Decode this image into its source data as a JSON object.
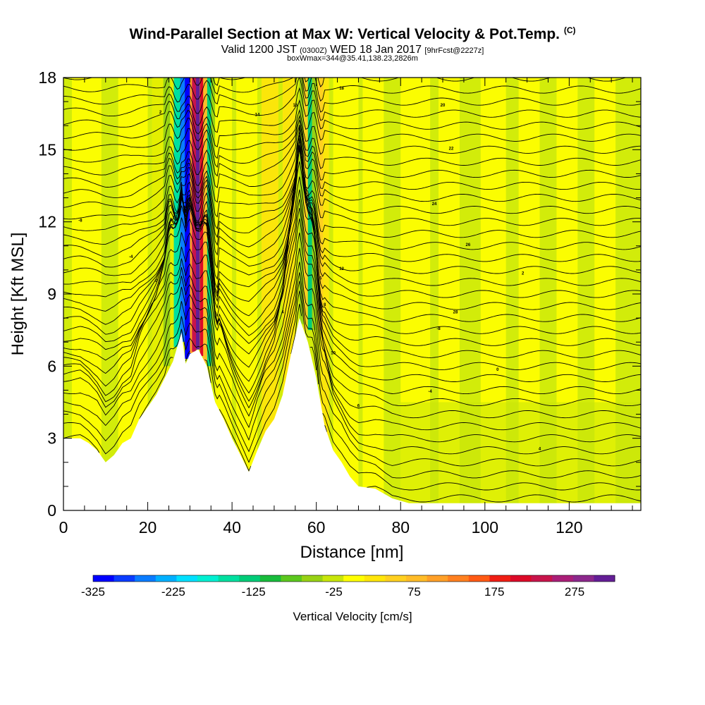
{
  "header": {
    "title": "Wind-Parallel Section at Max W: Vertical Velocity & Pot.Temp.",
    "title_units": "(C)",
    "valid_a": "Valid 1200 JST",
    "valid_b": "(0300Z)",
    "valid_c": "WED 18 Jan 2017",
    "valid_d": "[9hrFcst@2227z]",
    "box_info": "boxWmax=344@35.41,138.23,2826m"
  },
  "chart_data": {
    "type": "heatmap",
    "xlabel": "Distance [nm]",
    "ylabel": "Height [Kft MSL]",
    "xlim": [
      0,
      137
    ],
    "ylim": [
      0,
      18
    ],
    "x_ticks": [
      "0",
      "20",
      "40",
      "60",
      "80",
      "100",
      "120"
    ],
    "x_tick_values": [
      0,
      20,
      40,
      60,
      80,
      100,
      120
    ],
    "y_ticks": [
      "0",
      "3",
      "6",
      "9",
      "12",
      "15",
      "18"
    ],
    "y_tick_values": [
      0,
      3,
      6,
      9,
      12,
      15,
      18
    ],
    "terrain_kft": [
      [
        0,
        3.0
      ],
      [
        4,
        3.0
      ],
      [
        6,
        2.8
      ],
      [
        8,
        2.5
      ],
      [
        10,
        2.0
      ],
      [
        12,
        2.3
      ],
      [
        14,
        2.8
      ],
      [
        16,
        3.0
      ],
      [
        18,
        3.8
      ],
      [
        20,
        4.3
      ],
      [
        22,
        4.8
      ],
      [
        24,
        5.5
      ],
      [
        26,
        6.2
      ],
      [
        28,
        7.4
      ],
      [
        29,
        6.1
      ],
      [
        30,
        6.5
      ],
      [
        32,
        6.7
      ],
      [
        34,
        6.0
      ],
      [
        36,
        4.5
      ],
      [
        38,
        3.8
      ],
      [
        40,
        3.0
      ],
      [
        42,
        2.3
      ],
      [
        44,
        1.6
      ],
      [
        46,
        2.5
      ],
      [
        48,
        3.3
      ],
      [
        50,
        3.8
      ],
      [
        52,
        4.8
      ],
      [
        54,
        6.5
      ],
      [
        56,
        8.0
      ],
      [
        58,
        7.0
      ],
      [
        60,
        5.5
      ],
      [
        62,
        3.5
      ],
      [
        64,
        2.5
      ],
      [
        66,
        2.0
      ],
      [
        68,
        1.4
      ],
      [
        70,
        1.0
      ],
      [
        74,
        0.9
      ],
      [
        78,
        0.5
      ],
      [
        82,
        0.3
      ],
      [
        137,
        0.3
      ]
    ],
    "colorbar": {
      "min": -325,
      "max": 325,
      "unit_label": "Vertical Velocity [cm/s]",
      "tick_labels": [
        "-325",
        "-225",
        "-125",
        "-25",
        "75",
        "175",
        "275"
      ],
      "tick_values": [
        -325,
        -225,
        -125,
        -25,
        75,
        175,
        275
      ],
      "colors": [
        "#0000ff",
        "#0a3cff",
        "#0a7cff",
        "#00b0ff",
        "#00e0ff",
        "#00f0d2",
        "#00e0a0",
        "#00cc78",
        "#18bc3c",
        "#5cc81e",
        "#98d214",
        "#c8e60a",
        "#ffff00",
        "#ffe60a",
        "#ffd020",
        "#ffbc28",
        "#ffa028",
        "#ff8020",
        "#ff5a14",
        "#f01e14",
        "#dc0a28",
        "#c8144b",
        "#aa1e78",
        "#8c288c",
        "#641e96"
      ]
    },
    "theta_contours": {
      "labels": [
        "-8",
        "-4",
        "0",
        "2",
        "4",
        "6",
        "8",
        "10",
        "12",
        "14",
        "16",
        "18",
        "20",
        "22",
        "24",
        "26",
        "28"
      ]
    }
  }
}
